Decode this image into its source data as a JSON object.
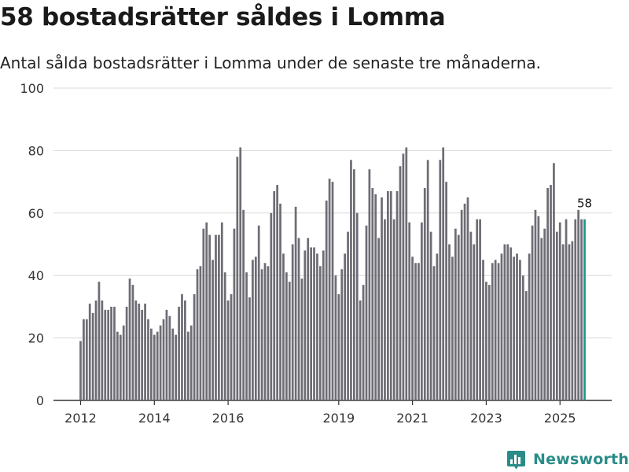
{
  "title": "58 bostadsrätter såldes i Lomma",
  "subtitle": "Antal sålda bostadsrätter i Lomma under de senaste tre månaderna.",
  "brand": {
    "name": "Newsworthy",
    "icon": "newsworthy-logo-icon"
  },
  "colors": {
    "bar": "#6e6d75",
    "highlight": "#21958c",
    "grid": "#d9d9d9",
    "axis": "#333333",
    "text": "#333333"
  },
  "chart_data": {
    "type": "bar",
    "title": "58 bostadsrätter såldes i Lomma",
    "xlabel": "",
    "ylabel": "",
    "ylim": [
      0,
      100
    ],
    "yticks": [
      0,
      20,
      40,
      60,
      80,
      100
    ],
    "grid": true,
    "x_tick_labels": [
      {
        "label": "2012",
        "index": 0
      },
      {
        "label": "2014",
        "index": 24
      },
      {
        "label": "2016",
        "index": 48
      },
      {
        "label": "2019",
        "index": 84
      },
      {
        "label": "2021",
        "index": 108
      },
      {
        "label": "2023",
        "index": 132
      },
      {
        "label": "2025",
        "index": 156
      }
    ],
    "highlight": {
      "index": 164,
      "label": "58"
    },
    "series": [
      {
        "name": "Sålda bostadsrätter (rullande tre månader)",
        "values": [
          19,
          26,
          26,
          31,
          28,
          32,
          38,
          32,
          29,
          29,
          30,
          30,
          22,
          21,
          24,
          30,
          39,
          37,
          32,
          31,
          29,
          31,
          26,
          23,
          21,
          22,
          24,
          26,
          29,
          27,
          23,
          21,
          30,
          34,
          32,
          22,
          24,
          34,
          42,
          43,
          55,
          57,
          53,
          45,
          53,
          53,
          57,
          41,
          32,
          34,
          55,
          78,
          81,
          61,
          41,
          33,
          45,
          46,
          56,
          42,
          44,
          43,
          60,
          67,
          69,
          63,
          47,
          41,
          38,
          50,
          62,
          52,
          39,
          48,
          52,
          49,
          49,
          47,
          43,
          48,
          64,
          71,
          70,
          40,
          34,
          42,
          47,
          54,
          77,
          74,
          60,
          32,
          37,
          56,
          74,
          68,
          66,
          52,
          65,
          58,
          67,
          67,
          58,
          67,
          75,
          79,
          81,
          57,
          46,
          44,
          44,
          57,
          68,
          77,
          54,
          43,
          47,
          77,
          81,
          70,
          50,
          46,
          55,
          53,
          61,
          63,
          65,
          54,
          50,
          58,
          58,
          45,
          38,
          37,
          44,
          45,
          44,
          47,
          50,
          50,
          49,
          46,
          47,
          45,
          40,
          35,
          47,
          56,
          61,
          59,
          52,
          55,
          68,
          69,
          76,
          54,
          57,
          50,
          58,
          50,
          51,
          58,
          61,
          58,
          58
        ]
      }
    ]
  }
}
